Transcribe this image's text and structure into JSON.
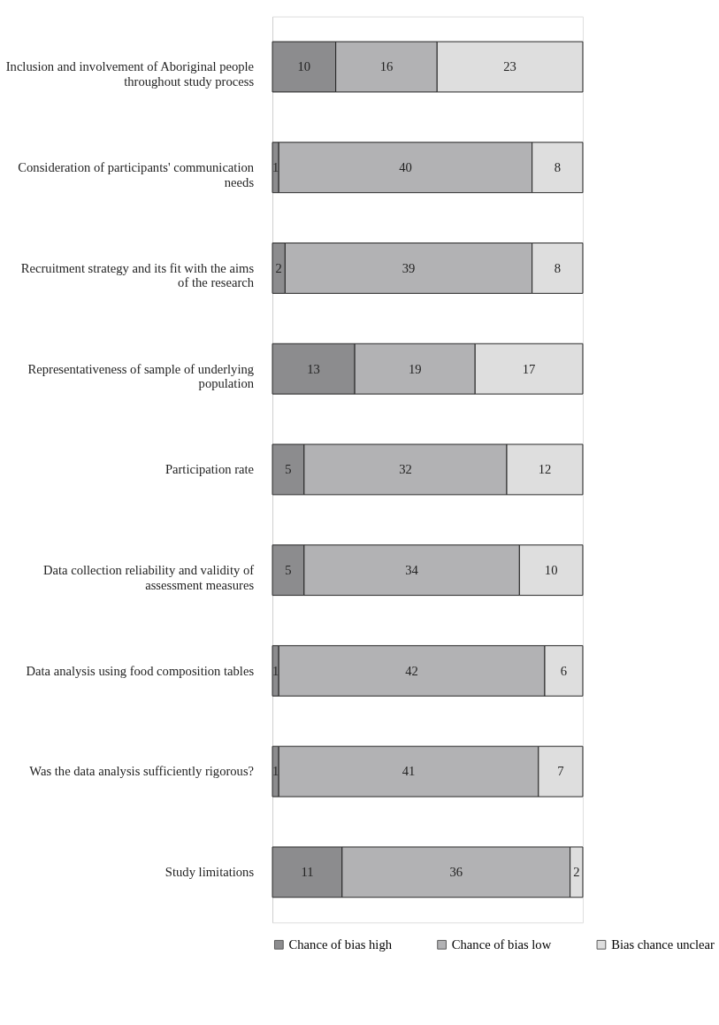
{
  "chart_data": {
    "type": "bar",
    "orientation": "horizontal",
    "stacked": true,
    "data_labels": true,
    "legend": "bottom",
    "categories": [
      "Inclusion and involvement of Aboriginal people throughout study process",
      "Consideration of participants' communication needs",
      "Recruitment strategy and its fit with the aims of the research",
      "Representativeness of sample of underlying population",
      "Participation rate",
      "Data collection reliability and validity of assessment measures",
      "Data analysis using food composition tables",
      "Was the data analysis sufficiently rigorous?",
      "Study limitations"
    ],
    "series": [
      {
        "name": "Chance of bias high",
        "color": "#8c8c8e",
        "values": [
          10,
          1,
          2,
          13,
          5,
          5,
          1,
          1,
          11
        ]
      },
      {
        "name": "Chance of bias low",
        "color": "#b2b2b4",
        "values": [
          16,
          40,
          39,
          19,
          32,
          34,
          42,
          41,
          36
        ]
      },
      {
        "name": "Bias chance unclear",
        "color": "#dedede",
        "values": [
          23,
          8,
          8,
          17,
          12,
          10,
          6,
          7,
          2
        ]
      }
    ]
  }
}
